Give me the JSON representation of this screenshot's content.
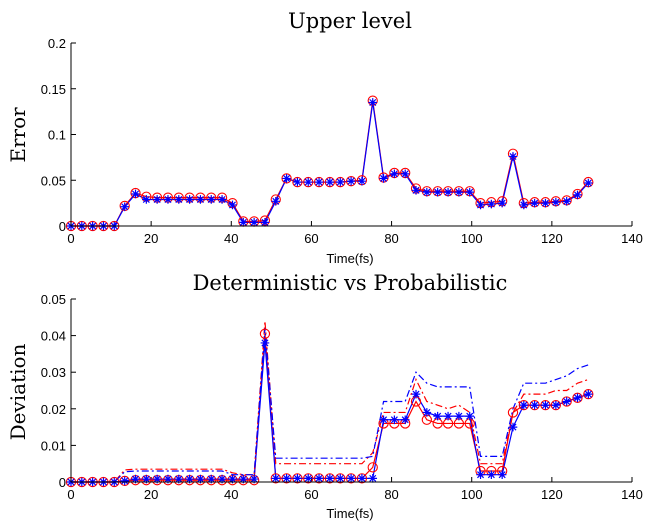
{
  "chart_data": [
    {
      "type": "line",
      "title": "Upper level",
      "xlabel": "Time(fs)",
      "ylabel": "Error",
      "xlim": [
        0,
        140
      ],
      "ylim": [
        0,
        0.2
      ],
      "xticks": [
        0,
        20,
        40,
        60,
        80,
        100,
        120,
        140
      ],
      "xtick_labels": [
        "0",
        "20",
        "40",
        "60",
        "80",
        "100",
        "120",
        "140"
      ],
      "yticks": [
        0,
        0.05,
        0.1,
        0.15,
        0.2
      ],
      "ytick_labels": [
        "0",
        "0.05",
        "0.1",
        "0.15",
        "0.2"
      ],
      "grid": false,
      "x": [
        0,
        2.7,
        5.4,
        8.1,
        10.8,
        13.4,
        16.1,
        18.8,
        21.5,
        24.2,
        26.9,
        29.6,
        32.3,
        35,
        37.7,
        40.3,
        43,
        45.7,
        48.4,
        51.1,
        53.8,
        56.5,
        59.2,
        61.9,
        64.6,
        67.2,
        69.9,
        72.6,
        75.3,
        78,
        80.7,
        83.4,
        86.1,
        88.8,
        91.5,
        94.1,
        96.8,
        99.5,
        102.2,
        104.9,
        107.6,
        110.3,
        113,
        115.7,
        118.4,
        121,
        123.7,
        126.4,
        129.1
      ],
      "series": [
        {
          "color": "#ff0000",
          "marker": "circle",
          "values": [
            0,
            0,
            0,
            0,
            0,
            0.022,
            0.036,
            0.032,
            0.031,
            0.031,
            0.031,
            0.031,
            0.031,
            0.031,
            0.031,
            0.025,
            0.005,
            0.005,
            0.006,
            0.029,
            0.052,
            0.048,
            0.048,
            0.048,
            0.048,
            0.048,
            0.049,
            0.05,
            0.137,
            0.053,
            0.058,
            0.058,
            0.041,
            0.038,
            0.038,
            0.038,
            0.038,
            0.038,
            0.025,
            0.026,
            0.027,
            0.079,
            0.025,
            0.026,
            0.026,
            0.027,
            0.028,
            0.035,
            0.048
          ]
        },
        {
          "color": "#0000ff",
          "marker": "star",
          "values": [
            0,
            0,
            0,
            0,
            0,
            0.021,
            0.035,
            0.029,
            0.029,
            0.029,
            0.029,
            0.029,
            0.029,
            0.029,
            0.029,
            0.023,
            0.004,
            0.004,
            0.004,
            0.027,
            0.052,
            0.048,
            0.048,
            0.048,
            0.048,
            0.048,
            0.049,
            0.049,
            0.135,
            0.052,
            0.057,
            0.057,
            0.039,
            0.037,
            0.037,
            0.037,
            0.037,
            0.037,
            0.023,
            0.024,
            0.025,
            0.076,
            0.023,
            0.025,
            0.025,
            0.026,
            0.027,
            0.034,
            0.047
          ]
        }
      ]
    },
    {
      "type": "line",
      "title": "Deterministic vs Probabilistic",
      "xlabel": "Time(fs)",
      "ylabel": "Deviation",
      "xlim": [
        0,
        140
      ],
      "ylim": [
        0,
        0.05
      ],
      "xticks": [
        0,
        20,
        40,
        60,
        80,
        100,
        120,
        140
      ],
      "xtick_labels": [
        "0",
        "20",
        "40",
        "60",
        "80",
        "100",
        "120",
        "140"
      ],
      "yticks": [
        0,
        0.01,
        0.02,
        0.03,
        0.04,
        0.05
      ],
      "ytick_labels": [
        "0",
        "0.01",
        "0.02",
        "0.03",
        "0.04",
        "0.05"
      ],
      "grid": false,
      "x": [
        0,
        2.7,
        5.4,
        8.1,
        10.8,
        13.4,
        16.1,
        18.8,
        21.5,
        24.2,
        26.9,
        29.6,
        32.3,
        35,
        37.7,
        40.3,
        43,
        45.7,
        48.4,
        51.1,
        53.8,
        56.5,
        59.2,
        61.9,
        64.6,
        67.2,
        69.9,
        72.6,
        75.3,
        78,
        80.7,
        83.4,
        86.1,
        88.8,
        91.5,
        94.1,
        96.8,
        99.5,
        102.2,
        104.9,
        107.6,
        110.3,
        113,
        115.7,
        118.4,
        121,
        123.7,
        126.4,
        129.1
      ],
      "series": [
        {
          "color": "#ff0000",
          "marker": "circle",
          "values": [
            0,
            0,
            0,
            0,
            0,
            0.0003,
            0.0005,
            0.0005,
            0.0005,
            0.0005,
            0.0005,
            0.0005,
            0.0005,
            0.0005,
            0.0005,
            0.0005,
            0.0005,
            0.0005,
            0.0405,
            0.001,
            0.001,
            0.001,
            0.001,
            0.001,
            0.001,
            0.001,
            0.001,
            0.001,
            0.004,
            0.016,
            0.016,
            0.016,
            0.022,
            0.017,
            0.016,
            0.016,
            0.016,
            0.016,
            0.003,
            0.003,
            0.003,
            0.019,
            0.021,
            0.021,
            0.021,
            0.021,
            0.022,
            0.023,
            0.024
          ]
        },
        {
          "color": "#0000ff",
          "marker": "star",
          "values": [
            0,
            0,
            0,
            0,
            0,
            0.0003,
            0.0008,
            0.0008,
            0.0008,
            0.0008,
            0.0008,
            0.0008,
            0.0008,
            0.0008,
            0.0008,
            0.0008,
            0.0008,
            0.0008,
            0.038,
            0.001,
            0.001,
            0.001,
            0.001,
            0.001,
            0.001,
            0.001,
            0.001,
            0.001,
            0.001,
            0.017,
            0.017,
            0.017,
            0.024,
            0.019,
            0.018,
            0.018,
            0.018,
            0.018,
            0.002,
            0.002,
            0.002,
            0.015,
            0.021,
            0.021,
            0.021,
            0.021,
            0.022,
            0.023,
            0.024
          ]
        },
        {
          "color": "#ff0000",
          "style": "dashdot",
          "values": [
            0,
            0,
            0,
            0,
            0,
            0.0033,
            0.0035,
            0.0035,
            0.0035,
            0.0035,
            0.0035,
            0.0035,
            0.0035,
            0.0035,
            0.0035,
            0.0025,
            0.002,
            0.002,
            0.044,
            0.005,
            0.005,
            0.005,
            0.005,
            0.005,
            0.005,
            0.005,
            0.005,
            0.005,
            0.008,
            0.019,
            0.019,
            0.019,
            0.028,
            0.022,
            0.021,
            0.02,
            0.021,
            0.019,
            0.005,
            0.005,
            0.005,
            0.019,
            0.024,
            0.024,
            0.024,
            0.025,
            0.025,
            0.027,
            0.028
          ]
        },
        {
          "color": "#0000ff",
          "style": "dashdot",
          "values": [
            0,
            0,
            0,
            0,
            0,
            0.0028,
            0.003,
            0.003,
            0.003,
            0.003,
            0.003,
            0.003,
            0.003,
            0.003,
            0.003,
            0.002,
            0.002,
            0.002,
            0.042,
            0.0065,
            0.0065,
            0.0065,
            0.0065,
            0.0065,
            0.0065,
            0.0065,
            0.0065,
            0.0065,
            0.007,
            0.022,
            0.022,
            0.022,
            0.03,
            0.027,
            0.026,
            0.026,
            0.026,
            0.026,
            0.007,
            0.007,
            0.007,
            0.02,
            0.027,
            0.027,
            0.027,
            0.028,
            0.029,
            0.031,
            0.032
          ]
        }
      ]
    }
  ]
}
